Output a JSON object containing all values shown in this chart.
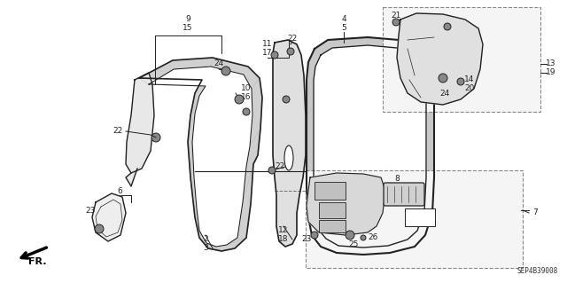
{
  "bg_color": "#ffffff",
  "line_color": "#222222",
  "part_number_code": "SEP4B39008",
  "figsize": [
    6.4,
    3.19
  ],
  "dpi": 100,
  "label_fontsize": 6.5,
  "small_fontsize": 5.5
}
